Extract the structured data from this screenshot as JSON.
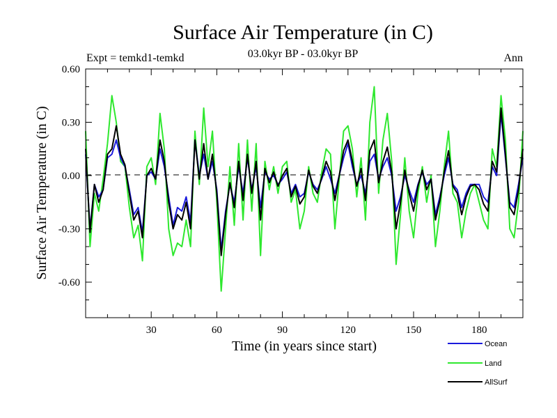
{
  "chart_data": {
    "type": "line",
    "title": "Surface Air Temperature (in C)",
    "subtitle": "03.0kyr BP - 03.0kyr BP",
    "left_label": "Expt = temkd1-temkd",
    "right_label": "Ann",
    "xlabel": "Time (in years since start)",
    "ylabel": "Surface Air Temperature (in C)",
    "xlim": [
      0,
      200
    ],
    "ylim": [
      -0.8,
      0.6
    ],
    "x_ticks": [
      30,
      60,
      90,
      120,
      150,
      180
    ],
    "x_tick_labels": [
      "30",
      "60",
      "90",
      "120",
      "150",
      "180"
    ],
    "y_ticks": [
      0.6,
      0.3,
      0.0,
      -0.3,
      -0.6
    ],
    "y_tick_labels": [
      "0.60",
      "0.30",
      "0.00",
      "-0.30",
      "-0.60"
    ],
    "zero_line": true,
    "legend_position": "bottom-right",
    "series": [
      {
        "name": "Ocean",
        "color": "#1a1adc",
        "x": [
          0,
          2,
          4,
          6,
          8,
          10,
          12,
          14,
          16,
          18,
          20,
          22,
          24,
          26,
          28,
          30,
          32,
          34,
          36,
          38,
          40,
          42,
          44,
          46,
          48,
          50,
          52,
          54,
          56,
          58,
          60,
          62,
          64,
          66,
          68,
          70,
          72,
          74,
          76,
          78,
          80,
          82,
          84,
          86,
          88,
          90,
          92,
          94,
          96,
          98,
          100,
          102,
          104,
          106,
          108,
          110,
          112,
          114,
          116,
          118,
          120,
          122,
          124,
          126,
          128,
          130,
          132,
          134,
          136,
          138,
          140,
          142,
          144,
          146,
          148,
          150,
          152,
          154,
          156,
          158,
          160,
          162,
          164,
          166,
          168,
          170,
          172,
          174,
          176,
          178,
          180,
          182,
          184,
          186,
          188,
          190,
          192,
          194,
          196,
          198,
          200
        ],
        "values": [
          0.12,
          -0.3,
          -0.05,
          -0.12,
          -0.08,
          0.1,
          0.12,
          0.2,
          0.1,
          0.05,
          -0.08,
          -0.22,
          -0.18,
          -0.32,
          0.0,
          0.02,
          -0.02,
          0.15,
          0.05,
          -0.12,
          -0.28,
          -0.18,
          -0.2,
          -0.12,
          -0.26,
          0.2,
          0.0,
          0.12,
          -0.02,
          0.08,
          -0.08,
          -0.42,
          -0.2,
          -0.05,
          -0.15,
          0.05,
          -0.1,
          0.1,
          -0.08,
          0.05,
          -0.18,
          0.02,
          -0.02,
          0.0,
          -0.05,
          -0.02,
          0.02,
          -0.1,
          -0.05,
          -0.12,
          -0.1,
          0.02,
          -0.05,
          -0.08,
          -0.02,
          0.05,
          -0.02,
          -0.1,
          0.0,
          0.1,
          0.18,
          0.05,
          -0.05,
          0.0,
          -0.1,
          0.08,
          0.12,
          -0.02,
          0.05,
          0.1,
          0.0,
          -0.2,
          -0.12,
          0.0,
          -0.08,
          -0.15,
          -0.05,
          0.02,
          -0.05,
          -0.02,
          -0.22,
          -0.12,
          0.0,
          0.1,
          -0.05,
          -0.08,
          -0.18,
          -0.1,
          -0.05,
          -0.05,
          -0.05,
          -0.12,
          -0.15,
          0.05,
          0.0,
          0.35,
          0.1,
          -0.15,
          -0.18,
          -0.05,
          0.1
        ]
      },
      {
        "name": "Land",
        "color": "#2ee82e",
        "x": [
          0,
          2,
          4,
          6,
          8,
          10,
          12,
          14,
          16,
          18,
          20,
          22,
          24,
          26,
          28,
          30,
          32,
          34,
          36,
          38,
          40,
          42,
          44,
          46,
          48,
          50,
          52,
          54,
          56,
          58,
          60,
          62,
          64,
          66,
          68,
          70,
          72,
          74,
          76,
          78,
          80,
          82,
          84,
          86,
          88,
          90,
          92,
          94,
          96,
          98,
          100,
          102,
          104,
          106,
          108,
          110,
          112,
          114,
          116,
          118,
          120,
          122,
          124,
          126,
          128,
          130,
          132,
          134,
          136,
          138,
          140,
          142,
          144,
          146,
          148,
          150,
          152,
          154,
          156,
          158,
          160,
          162,
          164,
          166,
          168,
          170,
          172,
          174,
          176,
          178,
          180,
          182,
          184,
          186,
          188,
          190,
          192,
          194,
          196,
          198,
          200
        ],
        "values": [
          0.25,
          -0.4,
          -0.1,
          -0.2,
          -0.02,
          0.18,
          0.45,
          0.3,
          0.08,
          0.05,
          -0.18,
          -0.35,
          -0.28,
          -0.48,
          0.05,
          0.1,
          -0.05,
          0.35,
          0.15,
          -0.3,
          -0.45,
          -0.38,
          -0.4,
          -0.25,
          -0.4,
          0.25,
          -0.05,
          0.38,
          0.05,
          0.25,
          -0.15,
          -0.65,
          -0.3,
          0.05,
          -0.28,
          0.18,
          -0.25,
          0.2,
          -0.2,
          0.18,
          -0.45,
          0.08,
          -0.08,
          0.05,
          -0.1,
          0.05,
          0.08,
          -0.15,
          -0.08,
          -0.3,
          -0.2,
          0.05,
          -0.1,
          -0.15,
          0.02,
          0.15,
          0.12,
          -0.3,
          -0.02,
          0.25,
          0.28,
          0.15,
          -0.12,
          0.1,
          -0.25,
          0.3,
          0.5,
          -0.1,
          0.2,
          0.35,
          0.08,
          -0.5,
          -0.22,
          0.1,
          -0.2,
          -0.35,
          -0.1,
          0.05,
          -0.15,
          0.0,
          -0.4,
          -0.2,
          0.05,
          0.25,
          -0.1,
          -0.15,
          -0.35,
          -0.2,
          -0.1,
          -0.05,
          -0.15,
          -0.25,
          -0.3,
          0.15,
          0.05,
          0.45,
          0.2,
          -0.3,
          -0.35,
          -0.15,
          0.25
        ]
      },
      {
        "name": "AllSurf",
        "color": "#000000",
        "x": [
          0,
          2,
          4,
          6,
          8,
          10,
          12,
          14,
          16,
          18,
          20,
          22,
          24,
          26,
          28,
          30,
          32,
          34,
          36,
          38,
          40,
          42,
          44,
          46,
          48,
          50,
          52,
          54,
          56,
          58,
          60,
          62,
          64,
          66,
          68,
          70,
          72,
          74,
          76,
          78,
          80,
          82,
          84,
          86,
          88,
          90,
          92,
          94,
          96,
          98,
          100,
          102,
          104,
          106,
          108,
          110,
          112,
          114,
          116,
          118,
          120,
          122,
          124,
          126,
          128,
          130,
          132,
          134,
          136,
          138,
          140,
          142,
          144,
          146,
          148,
          150,
          152,
          154,
          156,
          158,
          160,
          162,
          164,
          166,
          168,
          170,
          172,
          174,
          176,
          178,
          180,
          182,
          184,
          186,
          188,
          190,
          192,
          194,
          196,
          198,
          200
        ],
        "values": [
          0.15,
          -0.32,
          -0.05,
          -0.15,
          -0.08,
          0.12,
          0.15,
          0.28,
          0.12,
          0.06,
          -0.1,
          -0.25,
          -0.2,
          -0.35,
          0.0,
          0.04,
          -0.02,
          0.2,
          0.08,
          -0.15,
          -0.3,
          -0.22,
          -0.25,
          -0.15,
          -0.3,
          0.2,
          -0.02,
          0.18,
          -0.02,
          0.12,
          -0.1,
          -0.45,
          -0.22,
          -0.04,
          -0.18,
          0.08,
          -0.14,
          0.12,
          -0.1,
          0.08,
          -0.25,
          0.04,
          -0.04,
          0.02,
          -0.06,
          0.0,
          0.04,
          -0.12,
          -0.06,
          -0.16,
          -0.12,
          0.03,
          -0.06,
          -0.1,
          -0.01,
          0.08,
          0.02,
          -0.14,
          0.0,
          0.14,
          0.2,
          0.08,
          -0.06,
          0.04,
          -0.14,
          0.14,
          0.2,
          -0.04,
          0.08,
          0.16,
          0.02,
          -0.3,
          -0.15,
          0.03,
          -0.1,
          -0.2,
          -0.06,
          0.03,
          -0.08,
          -0.02,
          -0.25,
          -0.14,
          0.02,
          0.14,
          -0.06,
          -0.1,
          -0.22,
          -0.12,
          -0.06,
          -0.05,
          -0.08,
          -0.16,
          -0.2,
          0.08,
          0.02,
          0.38,
          0.12,
          -0.18,
          -0.22,
          -0.08,
          0.15
        ]
      }
    ]
  }
}
